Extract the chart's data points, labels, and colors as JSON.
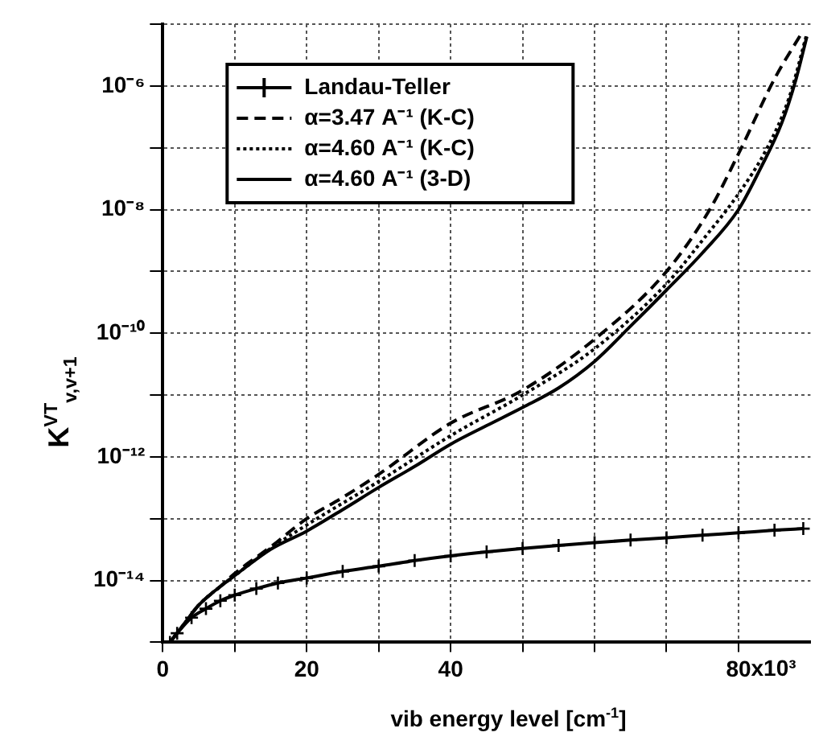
{
  "chart_data": {
    "type": "line",
    "xlabel": "vib energy level [cm$^{-1}$]",
    "ylabel": "K$^{VT}$$_{v,v+1}$",
    "log": "y",
    "grid": true,
    "legend": "top left",
    "xlim": [
      0,
      90
    ],
    "xticks": [
      0,
      {
        "value": 10,
        "label": null
      },
      20,
      {
        "value": 30,
        "label": null
      },
      40,
      {
        "value": 50,
        "label": null
      },
      {
        "value": 60,
        "label": null
      },
      {
        "value": 70,
        "label": null
      },
      80
    ],
    "annotations": [
      "x10³"
    ],
    "ylim": [
      1e-15,
      1e-05
    ],
    "yticks": [
      {
        "value": 1e-15,
        "label": null
      },
      {
        "value": 1e-14,
        "label": "10⁻¹⁴"
      },
      {
        "value": 1e-13,
        "label": null
      },
      {
        "value": 1e-12,
        "label": "10⁻¹²"
      },
      {
        "value": 1e-11,
        "label": null
      },
      {
        "value": 1e-10,
        "label": "10⁻¹⁰"
      },
      {
        "value": 1e-09,
        "label": null
      },
      {
        "value": 1e-08,
        "label": "10⁻⁸"
      },
      {
        "value": 1e-07,
        "label": null
      },
      {
        "value": 1e-06,
        "label": "10⁻⁶"
      },
      {
        "value": 1e-05,
        "label": null
      }
    ],
    "series": [
      {
        "name": "Landau-Teller",
        "color": "#000000",
        "marker": "cross",
        "line_style": "solid",
        "x": [
          1,
          2,
          4,
          6,
          8,
          10,
          13,
          16,
          20,
          25,
          30,
          35,
          40,
          45,
          50,
          55,
          60,
          65,
          70,
          75,
          80,
          85,
          89
        ],
        "values": [
          1e-15,
          1.4e-15,
          2.5e-15,
          3.5e-15,
          4.7e-15,
          5.8e-15,
          7.4e-15,
          9.1e-15,
          1.1e-14,
          1.4e-14,
          1.7e-14,
          2.1e-14,
          2.5e-14,
          2.9e-14,
          3.3e-14,
          3.7e-14,
          4.1e-14,
          4.5e-14,
          4.9e-14,
          5.4e-14,
          5.9e-14,
          6.5e-14,
          6.9e-14
        ]
      },
      {
        "name": "α=3.47 A⁻¹ (K-C)",
        "color": "#000000",
        "marker": "none",
        "line_style": "dashed",
        "x": [
          1,
          3,
          5,
          8,
          10,
          15,
          20,
          25,
          30,
          40,
          50,
          60,
          70,
          76,
          80,
          85,
          89
        ],
        "values": [
          1e-15,
          2e-15,
          4e-15,
          8e-15,
          1.3e-14,
          3.5e-14,
          1e-13,
          2.2e-13,
          5.2e-13,
          3.5e-12,
          1.2e-11,
          8e-11,
          1e-09,
          1e-08,
          8e-08,
          1.3e-06,
          7.9e-06
        ]
      },
      {
        "name": "α=4.60 A⁻¹ (K-C)",
        "color": "#000000",
        "marker": "none",
        "line_style": "dotted",
        "x": [
          1,
          3,
          5,
          8,
          10,
          15,
          20,
          30,
          40,
          50,
          60,
          70,
          75,
          80,
          84,
          87,
          89.5
        ],
        "values": [
          1e-15,
          2e-15,
          4e-15,
          8e-15,
          1.2e-14,
          3.3e-14,
          7.9e-14,
          4e-13,
          2.2e-12,
          1e-11,
          5.6e-11,
          6.3e-10,
          3.2e-09,
          1.8e-08,
          1e-07,
          6.3e-07,
          7e-06
        ]
      },
      {
        "name": "α=4.60 A⁻¹ (3-D)",
        "color": "#000000",
        "marker": "none",
        "line_style": "solid",
        "x": [
          1,
          3,
          5,
          8,
          10,
          15,
          20,
          25,
          30,
          35,
          40,
          45,
          50,
          55,
          60,
          65,
          70,
          75,
          80,
          83,
          86,
          88,
          89.5
        ],
        "values": [
          1e-15,
          2e-15,
          4e-15,
          8e-15,
          1.2e-14,
          3.2e-14,
          6.3e-14,
          1.4e-13,
          3.2e-13,
          7e-13,
          1.6e-12,
          3.2e-12,
          6.3e-12,
          1.3e-11,
          3.5e-11,
          1.3e-10,
          5e-10,
          2e-09,
          1e-08,
          4.5e-08,
          2.5e-07,
          1.3e-06,
          6.3e-06
        ]
      }
    ]
  }
}
